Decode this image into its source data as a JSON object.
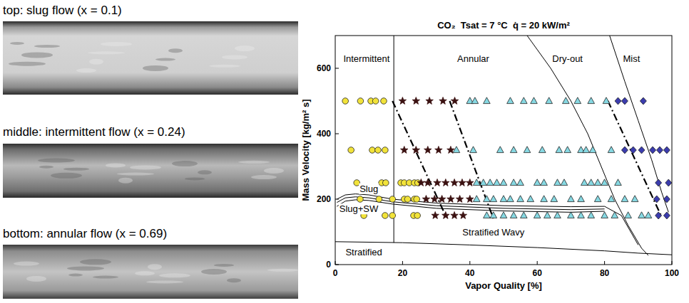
{
  "photos": [
    {
      "caption": "top: slug flow (x = 0.1)"
    },
    {
      "caption": "middle: intermittent flow (x = 0.24)"
    },
    {
      "caption": "bottom: annular flow (x = 0.69)"
    }
  ],
  "chart_data": {
    "type": "scatter",
    "title": "CO₂  Tsat = 7 °C  q̇ = 20 kW/m²",
    "x_label": "Vapor Quality [%]",
    "y_label": "Mass Velocity [kg/m² s]",
    "xlim": [
      0,
      100
    ],
    "ylim": [
      0,
      700
    ],
    "xticks": [
      0,
      20,
      40,
      60,
      80,
      100
    ],
    "yticks": [
      0,
      200,
      400,
      600
    ],
    "grid": false,
    "series": [
      {
        "type": "scatter",
        "marker": "circle",
        "color": "#f2e33a",
        "x": [
          3,
          7.5,
          10.6,
          12,
          14.4,
          4.7,
          11,
          12.7,
          14.8,
          6.4,
          13.8,
          15,
          19.5,
          20.5,
          22,
          23.5,
          24.5,
          7.4,
          13,
          17,
          20.5,
          21.5,
          23.5,
          24.2,
          8.5,
          14.8,
          17,
          23.3,
          24.4
        ],
        "values": [
          500,
          500,
          500,
          500,
          500,
          350,
          350,
          350,
          350,
          250,
          250,
          250,
          250,
          250,
          250,
          250,
          250,
          200,
          200,
          200,
          200,
          200,
          200,
          200,
          150,
          150,
          150,
          150,
          150
        ]
      },
      {
        "type": "scatter",
        "marker": "star",
        "color": "#3a1010",
        "x": [
          20,
          24,
          28,
          32,
          35.5,
          20.5,
          24,
          27.5,
          30.7,
          34.3,
          25.5,
          27.5,
          30.3,
          32.8,
          35.4,
          37.7,
          40,
          27,
          29.5,
          31.7,
          34.3,
          37,
          40,
          29.7,
          32.8,
          35.4,
          38
        ],
        "values": [
          500,
          500,
          500,
          500,
          500,
          350,
          350,
          350,
          350,
          350,
          250,
          250,
          250,
          250,
          250,
          250,
          250,
          200,
          200,
          200,
          200,
          200,
          200,
          150,
          150,
          150,
          150
        ]
      },
      {
        "type": "scatter",
        "marker": "triangle",
        "color": "#86d8e2",
        "x": [
          40,
          41.5,
          45,
          52,
          56,
          59,
          63.5,
          68.5,
          72,
          76,
          80.5,
          36,
          41,
          49,
          53,
          57,
          61.5,
          66.5,
          69,
          73,
          74.5,
          76.5,
          82,
          42,
          44,
          46,
          48,
          50,
          53,
          55,
          60,
          62,
          66,
          68,
          74,
          76,
          78,
          80,
          84,
          42,
          45,
          47,
          50,
          52,
          55,
          58,
          62,
          65,
          70,
          73,
          78,
          82,
          86,
          89,
          45,
          47,
          50,
          53,
          56,
          60,
          63,
          66,
          70,
          73,
          76,
          80,
          83,
          87,
          91,
          93
        ],
        "values": [
          500,
          500,
          500,
          500,
          500,
          500,
          500,
          500,
          500,
          500,
          500,
          350,
          350,
          350,
          350,
          350,
          350,
          350,
          350,
          350,
          350,
          350,
          350,
          250,
          250,
          250,
          250,
          250,
          250,
          250,
          250,
          250,
          250,
          250,
          250,
          250,
          250,
          250,
          250,
          200,
          200,
          200,
          200,
          200,
          200,
          200,
          200,
          200,
          200,
          200,
          200,
          200,
          200,
          200,
          150,
          150,
          150,
          150,
          150,
          150,
          150,
          150,
          150,
          150,
          150,
          150,
          150,
          150,
          150,
          150
        ]
      },
      {
        "type": "scatter",
        "marker": "diamond",
        "color": "#3b3cae",
        "x": [
          84,
          86,
          91.5,
          86,
          88.5,
          91,
          94.3,
          96.4,
          98.5,
          96,
          99,
          95.5,
          98.5,
          96,
          98.5
        ],
        "values": [
          500,
          500,
          500,
          350,
          350,
          350,
          350,
          350,
          350,
          250,
          250,
          200,
          200,
          150,
          150
        ]
      },
      {
        "type": "line",
        "line_style": "solid",
        "color": "#000000",
        "x": [
          17.4,
          17.4
        ],
        "values": [
          700,
          67
        ]
      },
      {
        "type": "line",
        "line_style": "solid",
        "color": "#000000",
        "x": [
          0,
          20,
          40,
          60,
          80,
          90,
          100
        ],
        "values": [
          70,
          67,
          60,
          52,
          42,
          35,
          30
        ]
      },
      {
        "type": "line",
        "line_style": "solid",
        "color": "#000000",
        "x": [
          0.5,
          3,
          6,
          10,
          17,
          30,
          50,
          70,
          80,
          85,
          90
        ],
        "values": [
          200,
          213,
          216,
          213,
          200,
          188,
          180,
          177,
          178,
          150,
          60
        ]
      },
      {
        "type": "line",
        "line_style": "solid",
        "color": "#000000",
        "x": [
          0.5,
          3,
          6,
          10,
          17,
          30,
          50,
          70,
          80
        ],
        "values": [
          190,
          204,
          207,
          204,
          192,
          180,
          172,
          168,
          170
        ]
      },
      {
        "type": "line",
        "line_style": "solid",
        "color": "#000000",
        "x": [
          0.5,
          3,
          6,
          10,
          17,
          30,
          50,
          70,
          80
        ],
        "values": [
          178,
          194,
          198,
          196,
          185,
          172,
          164,
          160,
          163
        ]
      },
      {
        "type": "line",
        "line_style": "solid",
        "color": "#000000",
        "x": [
          57,
          64,
          70,
          75,
          79,
          83,
          87,
          91,
          93
        ],
        "values": [
          700,
          600,
          500,
          400,
          300,
          200,
          120,
          50,
          28
        ]
      },
      {
        "type": "line",
        "line_style": "solid",
        "color": "#000000",
        "x": [
          81.5,
          86,
          90,
          94,
          97,
          99
        ],
        "values": [
          700,
          560,
          440,
          320,
          220,
          160
        ]
      },
      {
        "type": "line",
        "line_style": "dashdot",
        "color": "#000000",
        "x": [
          17,
          33
        ],
        "values": [
          500,
          145
        ]
      },
      {
        "type": "line",
        "line_style": "dashdot",
        "color": "#000000",
        "x": [
          34,
          47
        ],
        "values": [
          500,
          140
        ]
      },
      {
        "type": "line",
        "line_style": "dashdot",
        "color": "#000000",
        "x": [
          81,
          97
        ],
        "values": [
          500,
          145
        ]
      }
    ],
    "annotations": [
      {
        "text": "Intermittent",
        "x": 9.3,
        "y": 630
      },
      {
        "text": "Annular",
        "x": 41,
        "y": 630
      },
      {
        "text": "Dry-out",
        "x": 69,
        "y": 630
      },
      {
        "text": "Mist",
        "x": 88,
        "y": 630
      },
      {
        "text": "Slug",
        "x": 10,
        "y": 232
      },
      {
        "text": "Slug+SW",
        "x": 7,
        "y": 170
      },
      {
        "text": "Stratified Wavy",
        "x": 47,
        "y": 100
      },
      {
        "text": "Stratified",
        "x": 8.5,
        "y": 38
      }
    ]
  }
}
